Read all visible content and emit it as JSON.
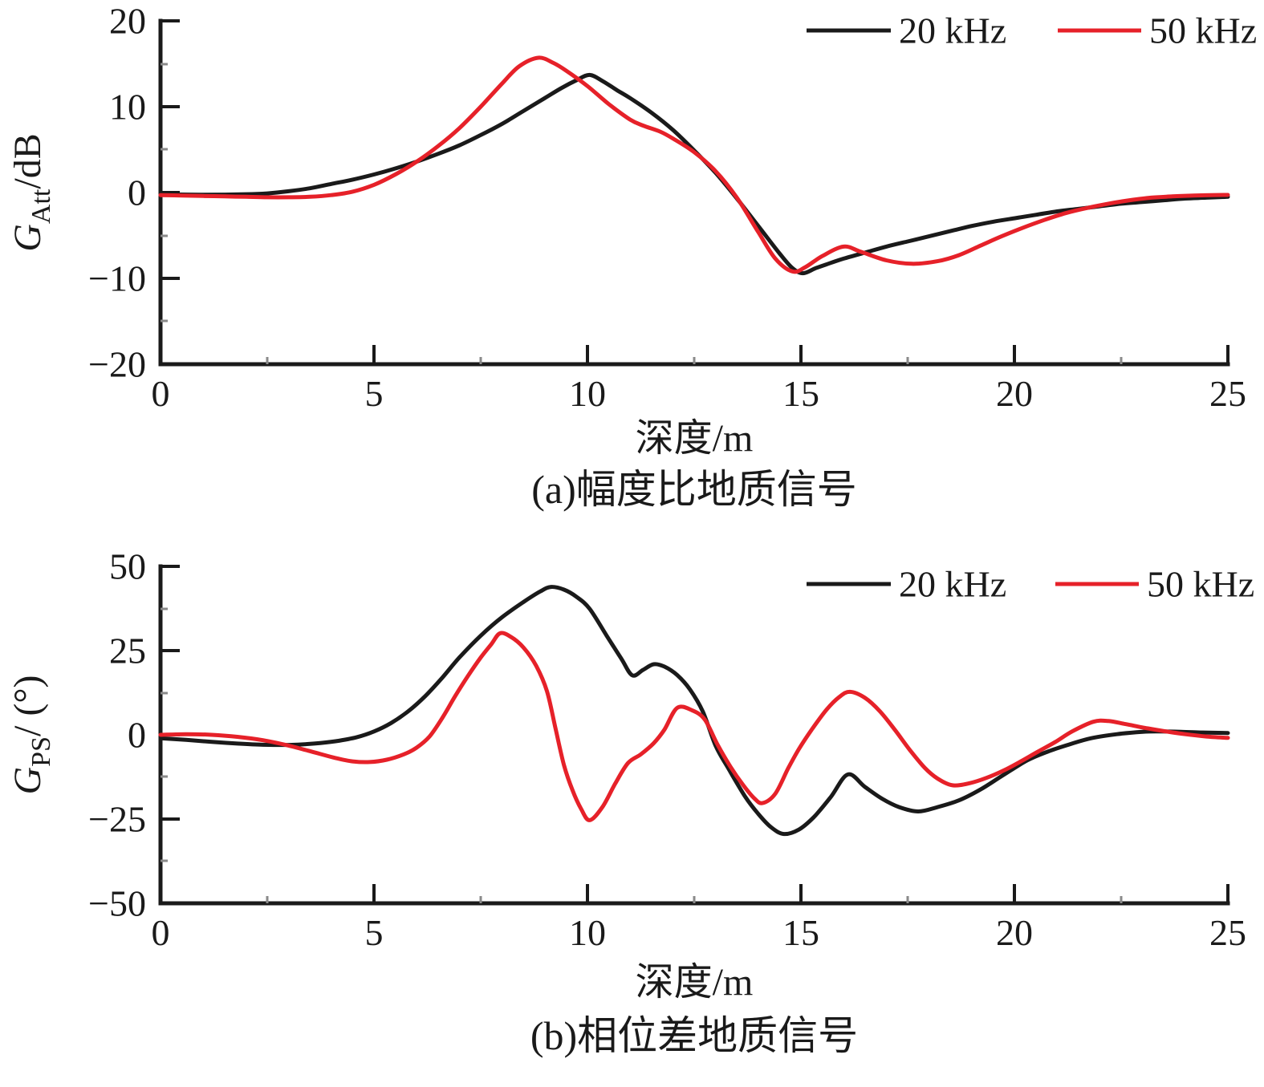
{
  "figure_caption_a": "(a)幅度比地质信号",
  "figure_caption_b": "(b)相位差地质信号",
  "chart_data": [
    {
      "type": "line",
      "title": "(a)幅度比地质信号",
      "xlabel": "深度/m",
      "ylabel": {
        "main": "G",
        "sub": "Att",
        "unit": "/dB"
      },
      "xlim": [
        0,
        25
      ],
      "ylim": [
        -20,
        20
      ],
      "grid": false,
      "legend_position": "top-right-horizontal",
      "x_tick_labels": [
        "0",
        "5",
        "10",
        "15",
        "20",
        "25"
      ],
      "y_tick_labels": [
        "20",
        "10",
        "0",
        "−10",
        "−20"
      ],
      "x_minor_ticks": [
        2.5,
        7.5,
        12.5,
        17.5,
        22.5
      ],
      "y_minor_ticks": [
        15,
        5,
        -5,
        -15
      ],
      "legend": [
        {
          "label": "20 kHz",
          "color": "#1a1a1a"
        },
        {
          "label": "50 kHz",
          "color": "#e62129"
        }
      ],
      "series": [
        {
          "name": "20 kHz",
          "color": "#1a1a1a",
          "points": [
            [
              0,
              -0.2
            ],
            [
              1,
              -0.25
            ],
            [
              2,
              -0.2
            ],
            [
              2.5,
              -0.1
            ],
            [
              3,
              0.15
            ],
            [
              3.5,
              0.5
            ],
            [
              4,
              1.0
            ],
            [
              4.5,
              1.5
            ],
            [
              5,
              2.1
            ],
            [
              5.5,
              2.8
            ],
            [
              6,
              3.6
            ],
            [
              6.5,
              4.5
            ],
            [
              7,
              5.5
            ],
            [
              7.5,
              6.7
            ],
            [
              8,
              8.0
            ],
            [
              8.5,
              9.5
            ],
            [
              9,
              11.0
            ],
            [
              9.4,
              12.2
            ],
            [
              9.75,
              13.1
            ],
            [
              10.05,
              13.7
            ],
            [
              10.35,
              13.0
            ],
            [
              10.7,
              11.9
            ],
            [
              11,
              11.0
            ],
            [
              11.5,
              9.3
            ],
            [
              12,
              7.3
            ],
            [
              12.5,
              4.9
            ],
            [
              13,
              2.3
            ],
            [
              13.5,
              -0.7
            ],
            [
              14,
              -3.9
            ],
            [
              14.5,
              -7.1
            ],
            [
              14.8,
              -8.8
            ],
            [
              15.05,
              -9.4
            ],
            [
              15.35,
              -8.8
            ],
            [
              15.7,
              -8.2
            ],
            [
              16,
              -7.7
            ],
            [
              16.5,
              -7.0
            ],
            [
              17,
              -6.3
            ],
            [
              17.5,
              -5.7
            ],
            [
              18,
              -5.1
            ],
            [
              18.5,
              -4.5
            ],
            [
              19,
              -3.9
            ],
            [
              19.5,
              -3.4
            ],
            [
              20,
              -3.0
            ],
            [
              20.5,
              -2.6
            ],
            [
              21,
              -2.2
            ],
            [
              21.5,
              -1.9
            ],
            [
              22,
              -1.6
            ],
            [
              22.5,
              -1.3
            ],
            [
              23,
              -1.1
            ],
            [
              23.5,
              -0.9
            ],
            [
              24,
              -0.7
            ],
            [
              24.5,
              -0.6
            ],
            [
              25,
              -0.5
            ]
          ]
        },
        {
          "name": "50 kHz",
          "color": "#e62129",
          "points": [
            [
              0,
              -0.3
            ],
            [
              0.5,
              -0.35
            ],
            [
              1,
              -0.4
            ],
            [
              1.5,
              -0.45
            ],
            [
              2,
              -0.5
            ],
            [
              2.5,
              -0.55
            ],
            [
              3,
              -0.55
            ],
            [
              3.5,
              -0.5
            ],
            [
              4,
              -0.3
            ],
            [
              4.5,
              0.1
            ],
            [
              5,
              0.9
            ],
            [
              5.5,
              2.1
            ],
            [
              6,
              3.6
            ],
            [
              6.5,
              5.4
            ],
            [
              7,
              7.5
            ],
            [
              7.5,
              10.0
            ],
            [
              8,
              12.7
            ],
            [
              8.4,
              14.7
            ],
            [
              8.85,
              15.7
            ],
            [
              9.2,
              15.1
            ],
            [
              9.5,
              14.2
            ],
            [
              10,
              12.4
            ],
            [
              10.5,
              10.3
            ],
            [
              11,
              8.5
            ],
            [
              11.3,
              7.8
            ],
            [
              11.7,
              7.1
            ],
            [
              12,
              6.3
            ],
            [
              12.5,
              4.7
            ],
            [
              13,
              2.5
            ],
            [
              13.5,
              -0.6
            ],
            [
              14,
              -4.6
            ],
            [
              14.4,
              -7.7
            ],
            [
              14.8,
              -9.2
            ],
            [
              15.1,
              -8.7
            ],
            [
              15.5,
              -7.4
            ],
            [
              16,
              -6.3
            ],
            [
              16.4,
              -6.9
            ],
            [
              17,
              -7.9
            ],
            [
              17.6,
              -8.3
            ],
            [
              18.2,
              -8.0
            ],
            [
              18.7,
              -7.3
            ],
            [
              19.2,
              -6.2
            ],
            [
              19.7,
              -5.1
            ],
            [
              20.2,
              -4.1
            ],
            [
              20.7,
              -3.2
            ],
            [
              21.2,
              -2.4
            ],
            [
              21.7,
              -1.8
            ],
            [
              22.2,
              -1.3
            ],
            [
              22.7,
              -0.9
            ],
            [
              23.2,
              -0.6
            ],
            [
              23.7,
              -0.45
            ],
            [
              24.2,
              -0.35
            ],
            [
              24.6,
              -0.3
            ],
            [
              25,
              -0.28
            ]
          ]
        }
      ]
    },
    {
      "type": "line",
      "title": "(b)相位差地质信号",
      "xlabel": "深度/m",
      "ylabel": {
        "main": "G",
        "sub": "PS",
        "unit": "/ (°)"
      },
      "xlim": [
        0,
        25
      ],
      "ylim": [
        -50,
        50
      ],
      "grid": false,
      "legend_position": "top-right-horizontal",
      "x_tick_labels": [
        "0",
        "5",
        "10",
        "15",
        "20",
        "25"
      ],
      "y_tick_labels": [
        "50",
        "25",
        "0",
        "−25",
        "−50"
      ],
      "x_minor_ticks": [
        2.5,
        7.5,
        12.5,
        17.5,
        22.5
      ],
      "y_minor_ticks": [
        37.5,
        12.5,
        -12.5,
        -37.5
      ],
      "legend": [
        {
          "label": "20 kHz",
          "color": "#1a1a1a"
        },
        {
          "label": "50 kHz",
          "color": "#e62129"
        }
      ],
      "series": [
        {
          "name": "20 kHz",
          "color": "#1a1a1a",
          "points": [
            [
              0,
              -1.0
            ],
            [
              0.6,
              -1.5
            ],
            [
              1.2,
              -2.1
            ],
            [
              1.8,
              -2.6
            ],
            [
              2.4,
              -2.95
            ],
            [
              3.0,
              -3.0
            ],
            [
              3.6,
              -2.6
            ],
            [
              4.1,
              -1.9
            ],
            [
              4.6,
              -0.7
            ],
            [
              5.0,
              1.0
            ],
            [
              5.4,
              3.5
            ],
            [
              5.8,
              7.0
            ],
            [
              6.2,
              11.5
            ],
            [
              6.6,
              17.0
            ],
            [
              7.0,
              23.0
            ],
            [
              7.5,
              29.5
            ],
            [
              8.0,
              35.0
            ],
            [
              8.5,
              39.5
            ],
            [
              8.9,
              42.7
            ],
            [
              9.15,
              44.0
            ],
            [
              9.45,
              43.2
            ],
            [
              9.75,
              41.0
            ],
            [
              10.05,
              37.5
            ],
            [
              10.45,
              29.5
            ],
            [
              10.8,
              22.5
            ],
            [
              11.05,
              17.7
            ],
            [
              11.3,
              19.3
            ],
            [
              11.55,
              21.0
            ],
            [
              11.8,
              20.3
            ],
            [
              12.1,
              17.8
            ],
            [
              12.4,
              13.5
            ],
            [
              12.7,
              7.0
            ],
            [
              13.0,
              -3.2
            ],
            [
              13.3,
              -10.0
            ],
            [
              13.7,
              -18.5
            ],
            [
              14.0,
              -23.5
            ],
            [
              14.3,
              -27.5
            ],
            [
              14.6,
              -29.5
            ],
            [
              14.95,
              -28.2
            ],
            [
              15.3,
              -24.5
            ],
            [
              15.7,
              -18.5
            ],
            [
              16.1,
              -11.8
            ],
            [
              16.5,
              -15.5
            ],
            [
              16.9,
              -19.0
            ],
            [
              17.3,
              -21.5
            ],
            [
              17.75,
              -22.8
            ],
            [
              18.2,
              -21.5
            ],
            [
              18.7,
              -19.5
            ],
            [
              19.2,
              -16.3
            ],
            [
              19.7,
              -12.3
            ],
            [
              20.3,
              -7.6
            ],
            [
              20.8,
              -4.9
            ],
            [
              21.3,
              -2.8
            ],
            [
              21.8,
              -1.0
            ],
            [
              22.4,
              0.2
            ],
            [
              23.0,
              0.9
            ],
            [
              23.4,
              1.0
            ],
            [
              23.9,
              0.9
            ],
            [
              24.4,
              0.7
            ],
            [
              25,
              0.55
            ]
          ]
        },
        {
          "name": "50 kHz",
          "color": "#e62129",
          "points": [
            [
              0,
              0.0
            ],
            [
              0.6,
              0.2
            ],
            [
              1.2,
              0.0
            ],
            [
              1.8,
              -0.6
            ],
            [
              2.4,
              -1.6
            ],
            [
              3.0,
              -3.2
            ],
            [
              3.6,
              -5.2
            ],
            [
              4.1,
              -6.9
            ],
            [
              4.5,
              -7.9
            ],
            [
              4.9,
              -8.1
            ],
            [
              5.3,
              -7.4
            ],
            [
              5.7,
              -5.8
            ],
            [
              6.0,
              -3.8
            ],
            [
              6.3,
              -0.5
            ],
            [
              6.6,
              5.0
            ],
            [
              6.9,
              11.5
            ],
            [
              7.2,
              17.5
            ],
            [
              7.5,
              23.0
            ],
            [
              7.75,
              27.0
            ],
            [
              7.95,
              30.2
            ],
            [
              8.2,
              29.2
            ],
            [
              8.5,
              26.0
            ],
            [
              8.8,
              20.5
            ],
            [
              9.05,
              13.0
            ],
            [
              9.25,
              2.0
            ],
            [
              9.45,
              -9.0
            ],
            [
              9.65,
              -16.5
            ],
            [
              9.85,
              -22.0
            ],
            [
              10.05,
              -25.4
            ],
            [
              10.35,
              -21.5
            ],
            [
              10.65,
              -14.5
            ],
            [
              10.95,
              -8.4
            ],
            [
              11.25,
              -5.8
            ],
            [
              11.55,
              -2.5
            ],
            [
              11.8,
              1.5
            ],
            [
              12.1,
              8.0
            ],
            [
              12.45,
              7.3
            ],
            [
              12.75,
              4.5
            ],
            [
              13.05,
              -3.0
            ],
            [
              13.35,
              -9.5
            ],
            [
              13.65,
              -15.0
            ],
            [
              13.9,
              -18.8
            ],
            [
              14.1,
              -20.3
            ],
            [
              14.4,
              -17.5
            ],
            [
              14.7,
              -10.0
            ],
            [
              14.95,
              -4.3
            ],
            [
              15.25,
              1.5
            ],
            [
              15.6,
              7.5
            ],
            [
              15.9,
              11.3
            ],
            [
              16.15,
              12.8
            ],
            [
              16.5,
              11.0
            ],
            [
              16.85,
              7.0
            ],
            [
              17.2,
              1.5
            ],
            [
              17.55,
              -4.5
            ],
            [
              17.9,
              -9.8
            ],
            [
              18.2,
              -13.0
            ],
            [
              18.55,
              -15.0
            ],
            [
              18.95,
              -14.4
            ],
            [
              19.35,
              -12.8
            ],
            [
              19.75,
              -10.6
            ],
            [
              20.15,
              -7.9
            ],
            [
              20.55,
              -5.0
            ],
            [
              20.95,
              -2.2
            ],
            [
              21.35,
              1.0
            ],
            [
              21.85,
              3.9
            ],
            [
              22.2,
              4.1
            ],
            [
              22.6,
              3.2
            ],
            [
              23.0,
              2.2
            ],
            [
              23.5,
              1.1
            ],
            [
              24.0,
              0.2
            ],
            [
              24.5,
              -0.5
            ],
            [
              25,
              -0.9
            ]
          ]
        }
      ]
    }
  ]
}
